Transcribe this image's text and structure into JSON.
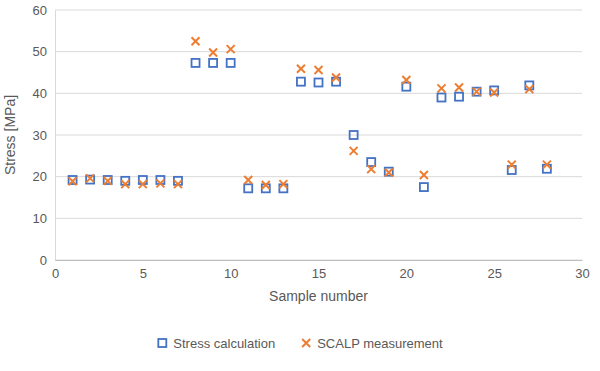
{
  "chart_data": {
    "type": "scatter",
    "x_label": "Sample number",
    "y_label": "Stress [MPa]",
    "x": [
      1,
      2,
      3,
      4,
      5,
      6,
      7,
      8,
      9,
      10,
      11,
      12,
      13,
      14,
      15,
      16,
      17,
      18,
      19,
      20,
      21,
      22,
      23,
      24,
      25,
      26,
      27,
      28
    ],
    "series": [
      {
        "name": "Stress calculation",
        "color": "#4472c4",
        "marker": "square",
        "values": [
          19.2,
          19.3,
          19.2,
          19.0,
          19.2,
          19.2,
          19.0,
          47.3,
          47.3,
          47.3,
          17.2,
          17.2,
          17.2,
          42.8,
          42.6,
          42.8,
          30.0,
          23.5,
          21.2,
          41.6,
          17.5,
          39.0,
          39.2,
          40.4,
          40.7,
          21.6,
          41.9,
          21.9
        ]
      },
      {
        "name": "SCALP measurement",
        "color": "#ed7d31",
        "marker": "x",
        "values": [
          18.9,
          19.6,
          19.0,
          18.2,
          18.2,
          18.4,
          18.2,
          52.5,
          49.8,
          50.6,
          19.2,
          18.0,
          18.2,
          45.9,
          45.6,
          43.8,
          26.2,
          21.8,
          21.0,
          43.2,
          20.4,
          41.2,
          41.4,
          40.4,
          40.2,
          22.9,
          41.0,
          22.9
        ]
      }
    ],
    "xlim": [
      0,
      30
    ],
    "xticks": [
      0,
      5,
      10,
      15,
      20,
      25,
      30
    ],
    "ylim": [
      0,
      60
    ],
    "yticks": [
      0,
      10,
      20,
      30,
      40,
      50,
      60
    ],
    "grid": true,
    "legend": "bottom"
  }
}
